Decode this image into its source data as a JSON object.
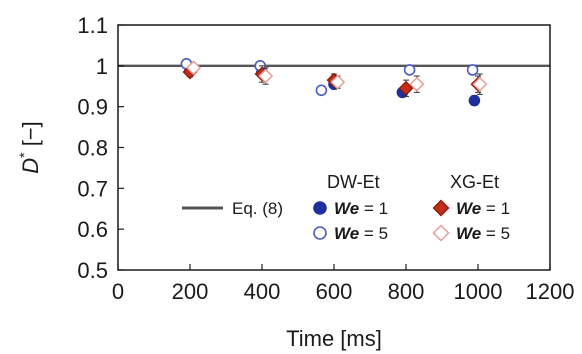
{
  "chart_data": {
    "type": "scatter",
    "xlabel": "Time [ms]",
    "ylabel_main": "D",
    "ylabel_sup": "*",
    "ylabel_unit": " [−]",
    "xlim": [
      0,
      1200
    ],
    "ylim": [
      0.5,
      1.1
    ],
    "x_ticks": [
      0,
      200,
      400,
      600,
      800,
      1000,
      1200
    ],
    "x_tick_labels": [
      "0",
      "200",
      "400",
      "600",
      "800",
      "1000",
      "1200"
    ],
    "y_ticks": [
      0.5,
      0.6,
      0.7,
      0.8,
      0.9,
      1.0,
      1.1
    ],
    "y_tick_labels": [
      "0.5",
      "0.6",
      "0.7",
      "0.8",
      "0.9",
      "1",
      "1.1"
    ],
    "reference_line": {
      "label": "Eq. (8)",
      "y": 1.0,
      "color": "#555555"
    },
    "legend": {
      "placement": "bottom-right",
      "group_titles": [
        "DW-Et",
        "XG-Et"
      ],
      "we_symbol": "We",
      "entries": [
        {
          "group": "DW-Et",
          "suffix": " = 1"
        },
        {
          "group": "DW-Et",
          "suffix": " = 5"
        },
        {
          "group": "XG-Et",
          "suffix": " = 1"
        },
        {
          "group": "XG-Et",
          "suffix": " = 5"
        }
      ]
    },
    "series": [
      {
        "group": "DW-Et",
        "we": 1,
        "marker": "circle",
        "filled": true,
        "color": "#1f2f9c",
        "points": [
          {
            "x": 200,
            "y": 0.99,
            "err": 0.01
          },
          {
            "x": 400,
            "y": 0.985,
            "err": 0.012
          },
          {
            "x": 600,
            "y": 0.955,
            "err": 0.012
          },
          {
            "x": 790,
            "y": 0.935,
            "err": 0.01
          },
          {
            "x": 990,
            "y": 0.915,
            "err": 0.012
          }
        ]
      },
      {
        "group": "DW-Et",
        "we": 5,
        "marker": "circle",
        "filled": false,
        "color": "#4a5cc0",
        "points": [
          {
            "x": 190,
            "y": 1.005,
            "err": 0.008
          },
          {
            "x": 395,
            "y": 1.0,
            "err": 0.01
          },
          {
            "x": 565,
            "y": 0.94,
            "err": 0.006
          },
          {
            "x": 810,
            "y": 0.99,
            "err": 0.01
          },
          {
            "x": 985,
            "y": 0.99,
            "err": 0.012
          }
        ]
      },
      {
        "group": "XG-Et",
        "we": 1,
        "marker": "diamond",
        "filled": true,
        "color": "#c42e18",
        "points": [
          {
            "x": 200,
            "y": 0.985,
            "err": 0.012
          },
          {
            "x": 400,
            "y": 0.98,
            "err": 0.02
          },
          {
            "x": 600,
            "y": 0.965,
            "err": 0.015
          },
          {
            "x": 800,
            "y": 0.945,
            "err": 0.02
          },
          {
            "x": 1000,
            "y": 0.955,
            "err": 0.02
          }
        ]
      },
      {
        "group": "XG-Et",
        "we": 5,
        "marker": "diamond",
        "filled": false,
        "color": "#e39a90",
        "points": [
          {
            "x": 210,
            "y": 0.995,
            "err": 0.01
          },
          {
            "x": 410,
            "y": 0.975,
            "err": 0.02
          },
          {
            "x": 610,
            "y": 0.96,
            "err": 0.015
          },
          {
            "x": 830,
            "y": 0.955,
            "err": 0.02
          },
          {
            "x": 1005,
            "y": 0.955,
            "err": 0.025
          }
        ]
      }
    ]
  }
}
